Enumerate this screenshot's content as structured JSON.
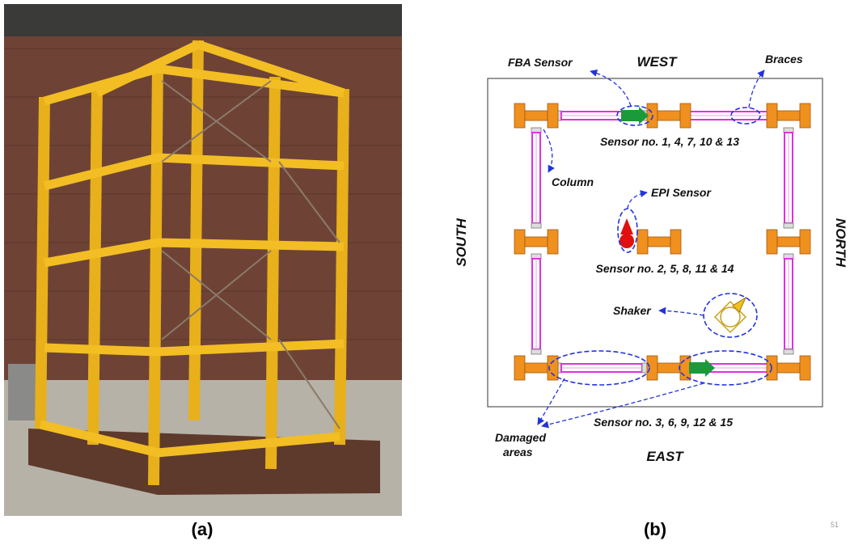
{
  "panel_a": {
    "caption": "(a)"
  },
  "panel_b": {
    "caption": "(b)",
    "directions": {
      "west": "WEST",
      "east": "EAST",
      "south": "SOUTH",
      "north": "NORTH"
    },
    "labels": {
      "fba_sensor": "FBA Sensor",
      "braces": "Braces",
      "column": "Column",
      "epi_sensor": "EPI Sensor",
      "shaker": "Shaker",
      "damaged_1": "Damaged",
      "damaged_2": "areas"
    },
    "sensor_groups": [
      "Sensor no. 1, 4, 7, 10 & 13",
      "Sensor no. 2, 5, 8, 11 & 14",
      "Sensor no. 3, 6, 9, 12 & 15"
    ]
  },
  "page_number": "51"
}
